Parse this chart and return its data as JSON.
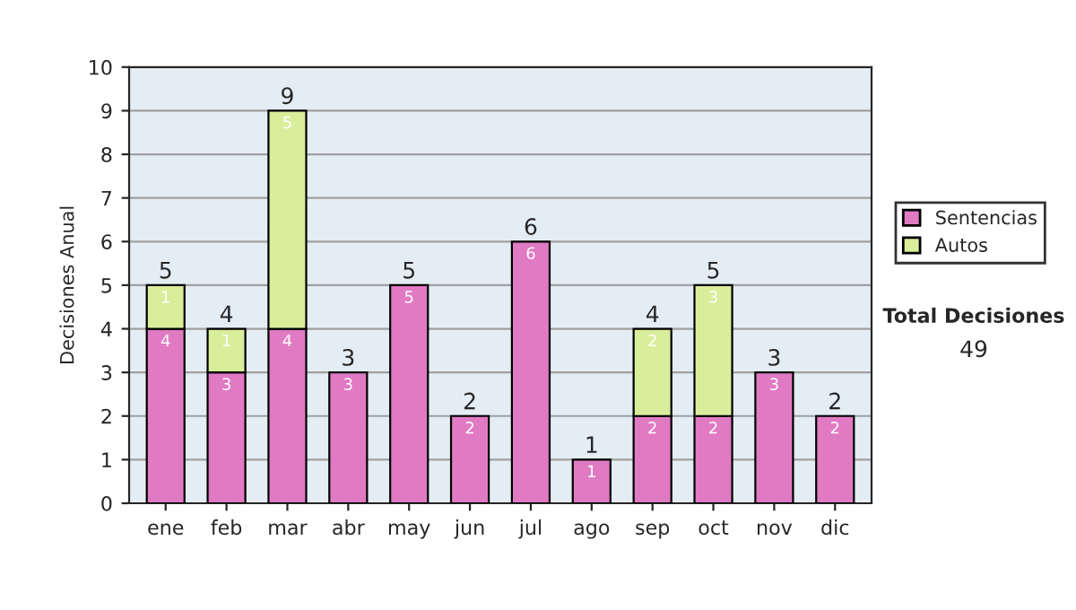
{
  "chart_data": {
    "type": "bar",
    "stacked": true,
    "ylabel": "Decisiones Anual",
    "categories": [
      "ene",
      "feb",
      "mar",
      "abr",
      "may",
      "jun",
      "jul",
      "ago",
      "sep",
      "oct",
      "nov",
      "dic"
    ],
    "series": [
      {
        "name": "Sentencias",
        "color": "#e07ac3",
        "values": [
          4,
          3,
          4,
          3,
          5,
          2,
          6,
          1,
          2,
          2,
          3,
          2
        ],
        "value_labels": [
          "4",
          "3",
          "4",
          "3",
          "5",
          "2",
          "6",
          "1",
          "2",
          "2",
          "3",
          "2"
        ]
      },
      {
        "name": "Autos",
        "color": "#d9ee9b",
        "values": [
          1,
          1,
          5,
          0,
          0,
          0,
          0,
          0,
          2,
          3,
          0,
          0
        ],
        "value_labels": [
          "1",
          "1",
          "5",
          null,
          null,
          null,
          null,
          null,
          "2",
          "3",
          null,
          null
        ]
      }
    ],
    "totals": [
      "5",
      "4",
      "9",
      "3",
      "5",
      "2",
      "6",
      "1",
      "4",
      "5",
      "3",
      "2"
    ],
    "ylim": [
      0,
      10
    ],
    "yticks": [
      0,
      1,
      2,
      3,
      4,
      5,
      6,
      7,
      8,
      9,
      10
    ],
    "grid": "y",
    "legend": "right",
    "annotations": [
      "Total Decisiones",
      "49"
    ]
  }
}
